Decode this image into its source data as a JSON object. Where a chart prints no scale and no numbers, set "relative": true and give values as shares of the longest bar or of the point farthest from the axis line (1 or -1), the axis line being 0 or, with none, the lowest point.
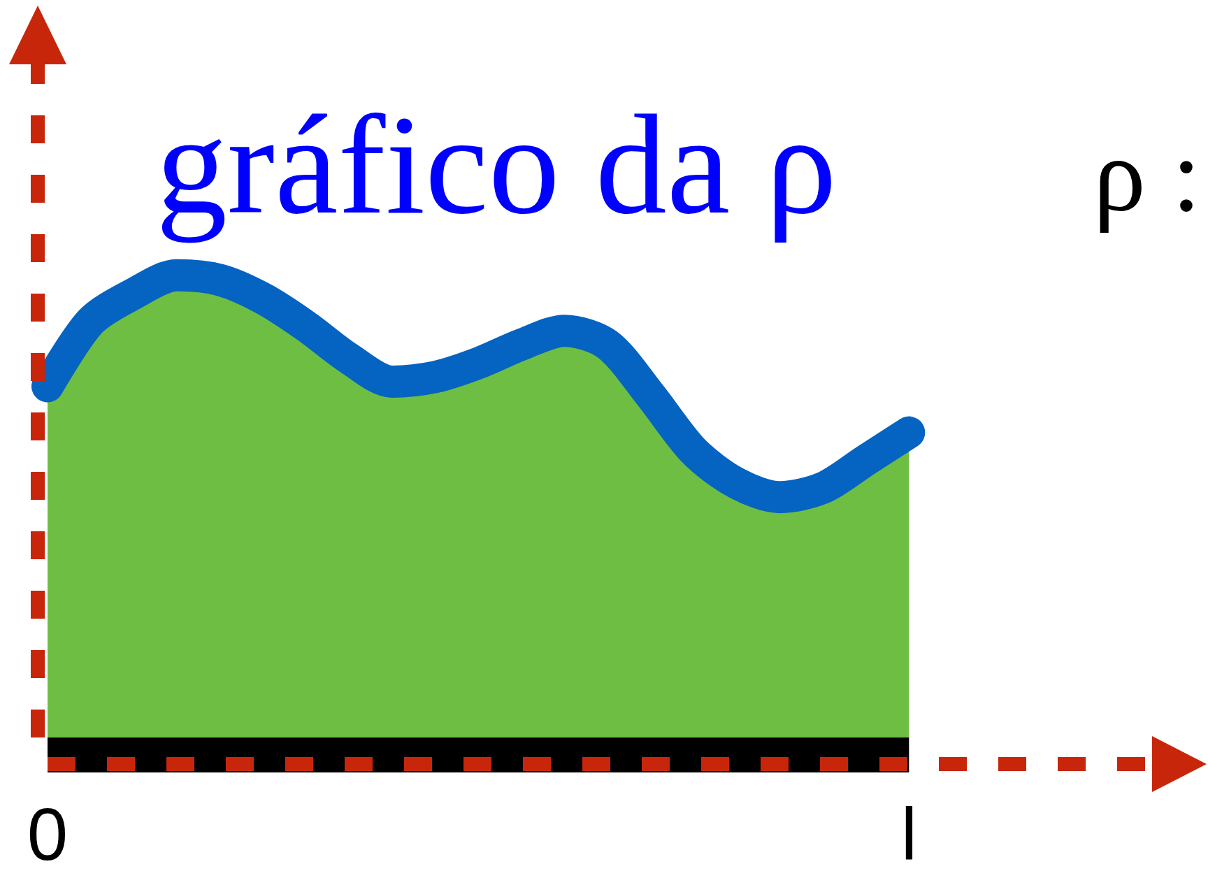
{
  "chart_data": {
    "type": "area",
    "title": "gráfico da ρ",
    "annotations": [
      "ρ :"
    ],
    "relative": true,
    "tick_labels": "x",
    "categories": [
      "0",
      null,
      null,
      null,
      null,
      null,
      null,
      null,
      null,
      null,
      null,
      null,
      null,
      null,
      null,
      null,
      null,
      null,
      null,
      null,
      "l",
      null,
      null,
      null,
      null,
      null,
      null
    ],
    "series": [
      {
        "color": "#6fbe44",
        "values": [
          0.76,
          0.9,
          0.96,
          1,
          0.99,
          0.95,
          0.89,
          0.82,
          0.77,
          0.78,
          0.81,
          0.85,
          0.88,
          0.85,
          0.74,
          0.62,
          0.55,
          0.52,
          0.54,
          0.6,
          0.66,
          null,
          null,
          null,
          null,
          null,
          null
        ]
      },
      {
        "type": "line",
        "color": "#0563c1",
        "values": [
          0.76,
          0.9,
          0.96,
          1,
          0.99,
          0.95,
          0.89,
          0.82,
          0.77,
          0.78,
          0.81,
          0.85,
          0.88,
          0.85,
          0.74,
          0.62,
          0.55,
          0.52,
          0.54,
          0.6,
          0.66,
          null,
          null,
          null,
          null,
          null,
          null
        ]
      }
    ]
  }
}
